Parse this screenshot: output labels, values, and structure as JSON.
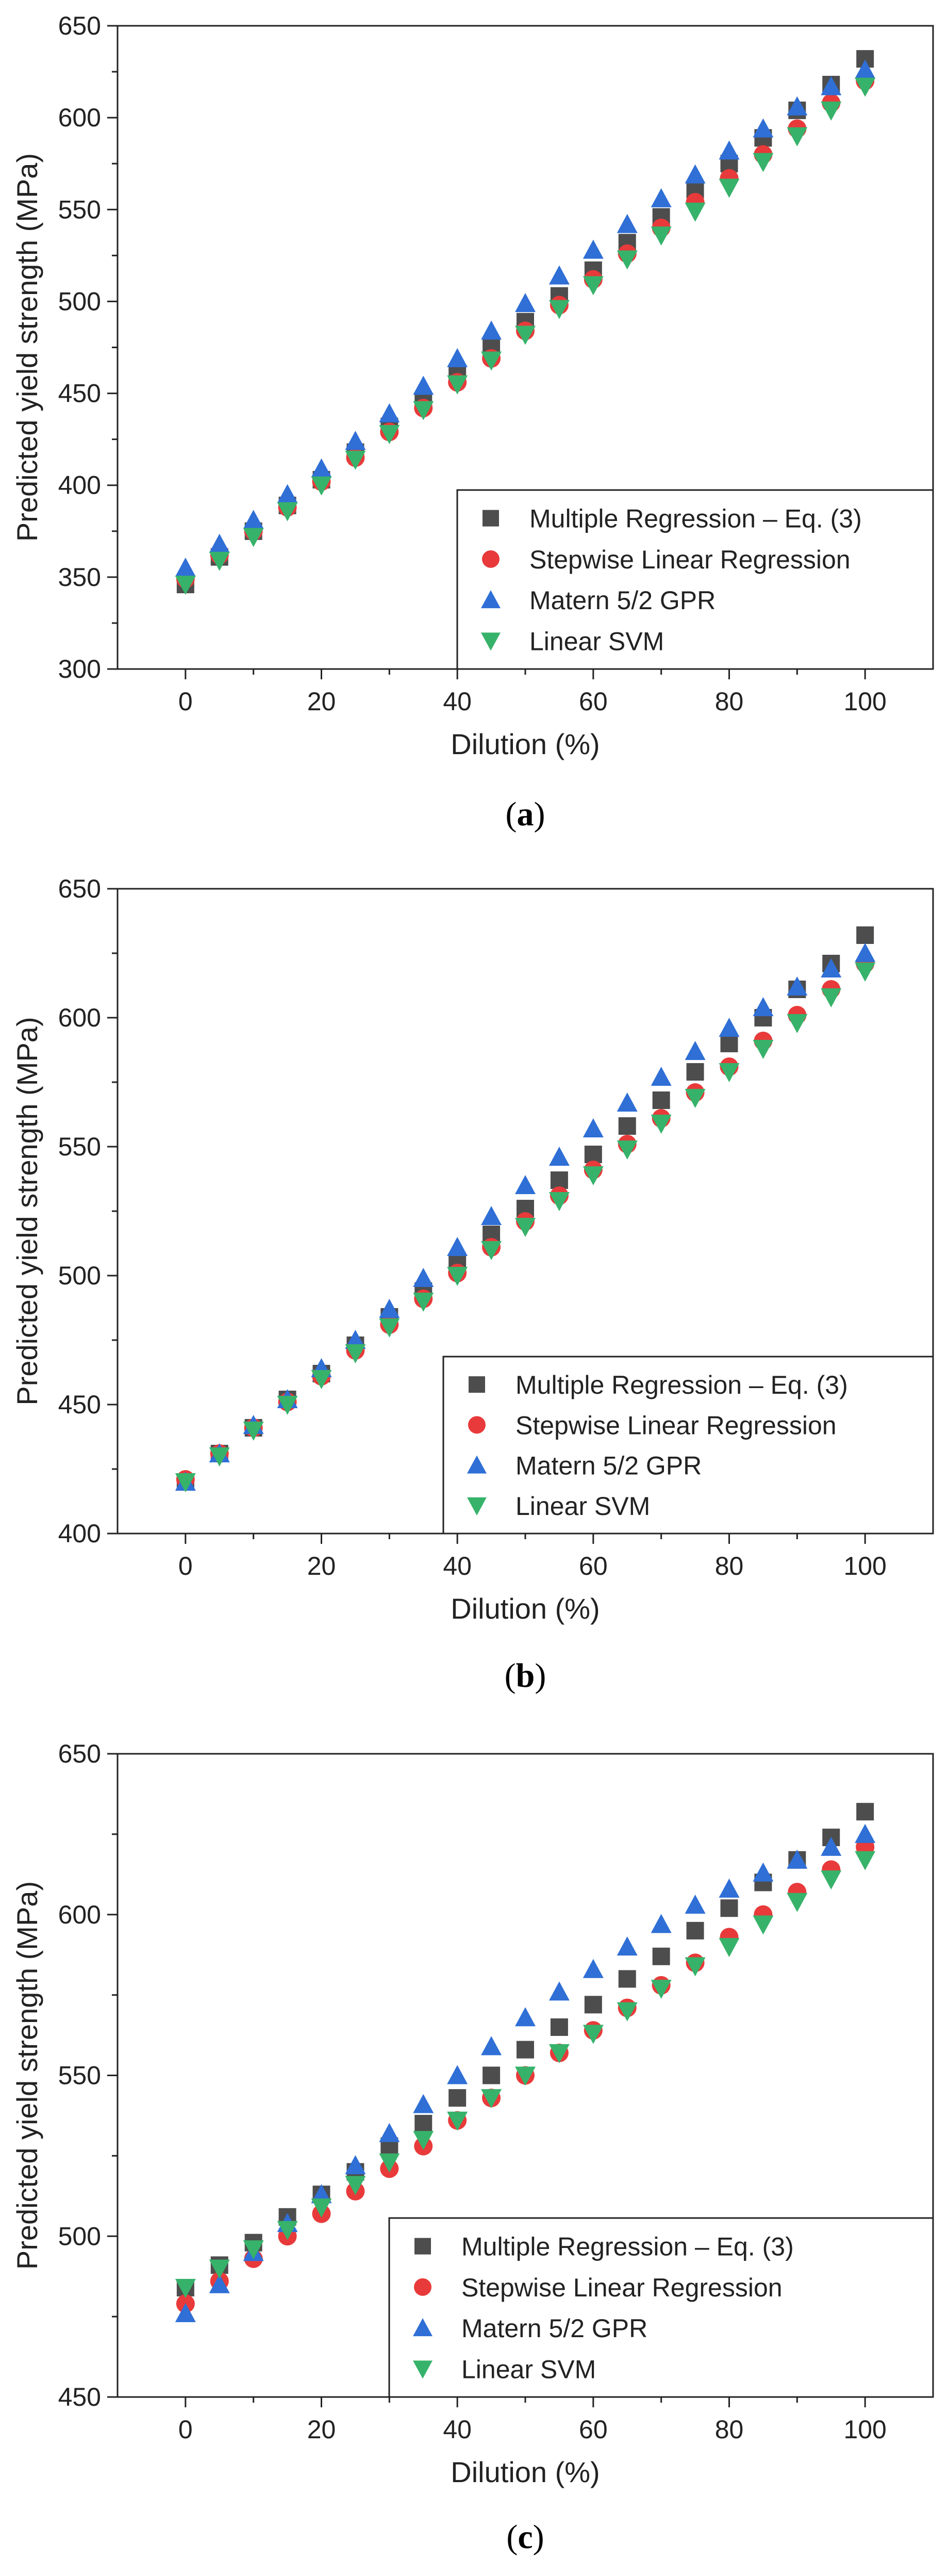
{
  "series_styles": [
    {
      "name": "Multiple Regression – Eq. (3)",
      "marker": "square",
      "color": "#4d4d4d"
    },
    {
      "name": "Stepwise Linear Regression",
      "marker": "circle",
      "color": "#e83a3a"
    },
    {
      "name": "Matern 5/2 GPR",
      "marker": "triangle-up",
      "color": "#2f6fd6"
    },
    {
      "name": "Linear SVM",
      "marker": "triangle-down",
      "color": "#37b26a"
    }
  ],
  "chart_data": [
    {
      "type": "scatter",
      "panel_label": "a",
      "xlabel": "Dilution (%)",
      "ylabel": "Predicted yield strength (MPa)",
      "xlim": [
        -10,
        110
      ],
      "ylim": [
        300,
        650
      ],
      "xticks": [
        0,
        20,
        40,
        60,
        80,
        100
      ],
      "yticks": [
        300,
        350,
        400,
        450,
        500,
        550,
        600,
        650
      ],
      "legend_position": "bottom-right",
      "x": [
        0,
        5,
        10,
        15,
        20,
        25,
        30,
        35,
        40,
        45,
        50,
        55,
        60,
        65,
        70,
        75,
        80,
        85,
        90,
        95,
        100
      ],
      "series": [
        {
          "name": "Multiple Regression – Eq. (3)",
          "values": [
            346,
            361,
            375,
            389,
            403,
            418,
            432,
            446,
            460,
            475,
            489,
            503,
            517,
            532,
            546,
            561,
            575,
            589,
            604,
            618,
            632
          ]
        },
        {
          "name": "Stepwise Linear Regression",
          "values": [
            349,
            362,
            375,
            388,
            402,
            415,
            429,
            442,
            456,
            469,
            484,
            498,
            512,
            526,
            540,
            554,
            567,
            580,
            594,
            608,
            620
          ]
        },
        {
          "name": "Matern 5/2 GPR",
          "values": [
            355,
            368,
            381,
            395,
            409,
            424,
            439,
            454,
            469,
            484,
            499,
            514,
            528,
            542,
            556,
            569,
            582,
            594,
            606,
            617,
            626
          ]
        },
        {
          "name": "Linear SVM",
          "values": [
            346,
            359,
            372,
            386,
            400,
            414,
            428,
            441,
            455,
            468,
            482,
            496,
            509,
            523,
            536,
            549,
            562,
            576,
            590,
            604,
            617
          ]
        }
      ]
    },
    {
      "type": "scatter",
      "panel_label": "b",
      "xlabel": "Dilution (%)",
      "ylabel": "Predicted yield strength (MPa)",
      "xlim": [
        -10,
        110
      ],
      "ylim": [
        400,
        650
      ],
      "xticks": [
        0,
        20,
        40,
        60,
        80,
        100
      ],
      "yticks": [
        400,
        450,
        500,
        550,
        600,
        650
      ],
      "legend_position": "bottom-right",
      "x": [
        0,
        5,
        10,
        15,
        20,
        25,
        30,
        35,
        40,
        45,
        50,
        55,
        60,
        65,
        70,
        75,
        80,
        85,
        90,
        95,
        100
      ],
      "series": [
        {
          "name": "Multiple Regression – Eq. (3)",
          "values": [
            420,
            431,
            441,
            452,
            462,
            473,
            484,
            494,
            505,
            516,
            526,
            537,
            547,
            558,
            568,
            579,
            590,
            600,
            611,
            621,
            632
          ]
        },
        {
          "name": "Stepwise Linear Regression",
          "values": [
            421,
            431,
            441,
            451,
            461,
            471,
            481,
            491,
            501,
            511,
            521,
            531,
            541,
            551,
            561,
            571,
            581,
            591,
            601,
            611,
            621
          ]
        },
        {
          "name": "Matern 5/2 GPR",
          "values": [
            420,
            431,
            442,
            452,
            464,
            475,
            487,
            499,
            511,
            523,
            535,
            546,
            557,
            567,
            577,
            587,
            596,
            604,
            612,
            619,
            625
          ]
        },
        {
          "name": "Linear SVM",
          "values": [
            420,
            430,
            440,
            450,
            460,
            470,
            480,
            490,
            500,
            510,
            519,
            529,
            539,
            549,
            559,
            569,
            579,
            588,
            598,
            608,
            618
          ]
        }
      ]
    },
    {
      "type": "scatter",
      "panel_label": "c",
      "xlabel": "Dilution (%)",
      "ylabel": "Predicted yield strength (MPa)",
      "xlim": [
        -10,
        110
      ],
      "ylim": [
        450,
        650
      ],
      "xticks": [
        0,
        20,
        40,
        60,
        80,
        100
      ],
      "yticks": [
        450,
        500,
        550,
        600,
        650
      ],
      "legend_position": "bottom-right",
      "x": [
        0,
        5,
        10,
        15,
        20,
        25,
        30,
        35,
        40,
        45,
        50,
        55,
        60,
        65,
        70,
        75,
        80,
        85,
        90,
        95,
        100
      ],
      "series": [
        {
          "name": "Multiple Regression – Eq. (3)",
          "values": [
            484,
            491,
            498,
            506,
            513,
            520,
            528,
            535,
            543,
            550,
            558,
            565,
            572,
            580,
            587,
            595,
            602,
            610,
            617,
            624,
            632
          ]
        },
        {
          "name": "Stepwise Linear Regression",
          "values": [
            479,
            486,
            493,
            500,
            507,
            514,
            521,
            528,
            536,
            543,
            550,
            557,
            564,
            571,
            578,
            585,
            593,
            600,
            607,
            614,
            621
          ]
        },
        {
          "name": "Matern 5/2 GPR",
          "values": [
            476,
            485,
            495,
            504,
            513,
            522,
            532,
            541,
            550,
            559,
            568,
            576,
            583,
            590,
            597,
            603,
            608,
            613,
            617,
            621,
            625
          ]
        },
        {
          "name": "Linear SVM",
          "values": [
            484,
            490,
            496,
            502,
            509,
            516,
            523,
            530,
            536,
            543,
            550,
            557,
            563,
            570,
            577,
            584,
            590,
            597,
            604,
            611,
            617
          ]
        }
      ]
    }
  ]
}
